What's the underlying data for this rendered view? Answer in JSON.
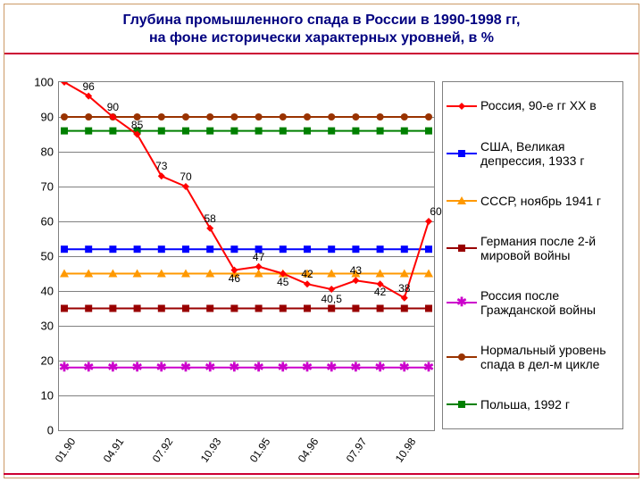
{
  "title_line1": "Глубина промышленного спада в России в 1990-1998 гг,",
  "title_line2": "на фоне исторически характерных уровней, в %",
  "title_fontsize": 16,
  "title_color": "#000080",
  "chart": {
    "type": "line",
    "background_color": "#ffffff",
    "grid_color": "#808080",
    "ylim": [
      0,
      100
    ],
    "ytick_step": 10,
    "x_labels": [
      "01.90",
      "04.91",
      "07.92",
      "10.93",
      "01.95",
      "04.96",
      "07.97",
      "10.98"
    ],
    "x_label_fontsize": 12,
    "y_label_fontsize": 13,
    "series": [
      {
        "key": "russia90s",
        "label": "Россия, 90-е гг XX в",
        "color": "#ff0000",
        "marker": "diamond",
        "line_width": 2,
        "y": [
          100,
          96,
          90,
          85,
          73,
          70,
          58,
          46,
          47,
          45,
          42,
          40.5,
          43,
          42,
          38,
          60
        ],
        "data_labels": [
          null,
          "96",
          "90",
          "85",
          "73",
          "70",
          "58",
          "46",
          "47",
          "45",
          "42",
          "40,5",
          "43",
          "42",
          "38",
          "60"
        ]
      },
      {
        "key": "usa1933",
        "label": "США, Великая депрессия, 1933 г",
        "color": "#0000ff",
        "marker": "square",
        "line_width": 2,
        "const_y": 52
      },
      {
        "key": "ussr1941",
        "label": "СССР, ноябрь 1941 г",
        "color": "#ff9900",
        "marker": "triangle",
        "line_width": 2,
        "const_y": 45
      },
      {
        "key": "germany_ww2",
        "label": "Германия после 2-й мировой войны",
        "color": "#990000",
        "marker": "square",
        "line_width": 2,
        "const_y": 35
      },
      {
        "key": "russia_civilwar",
        "label": "Россия после Гражданской войны",
        "color": "#cc00cc",
        "marker": "asterisk",
        "line_width": 2,
        "const_y": 18
      },
      {
        "key": "normal_cycle",
        "label": "Нормальный уровень спада в дел-м цикле",
        "color": "#993300",
        "marker": "circle",
        "line_width": 2,
        "const_y": 90
      },
      {
        "key": "poland1992",
        "label": "Польша, 1992 г",
        "color": "#008000",
        "marker": "square",
        "line_width": 2,
        "const_y": 86
      }
    ]
  }
}
